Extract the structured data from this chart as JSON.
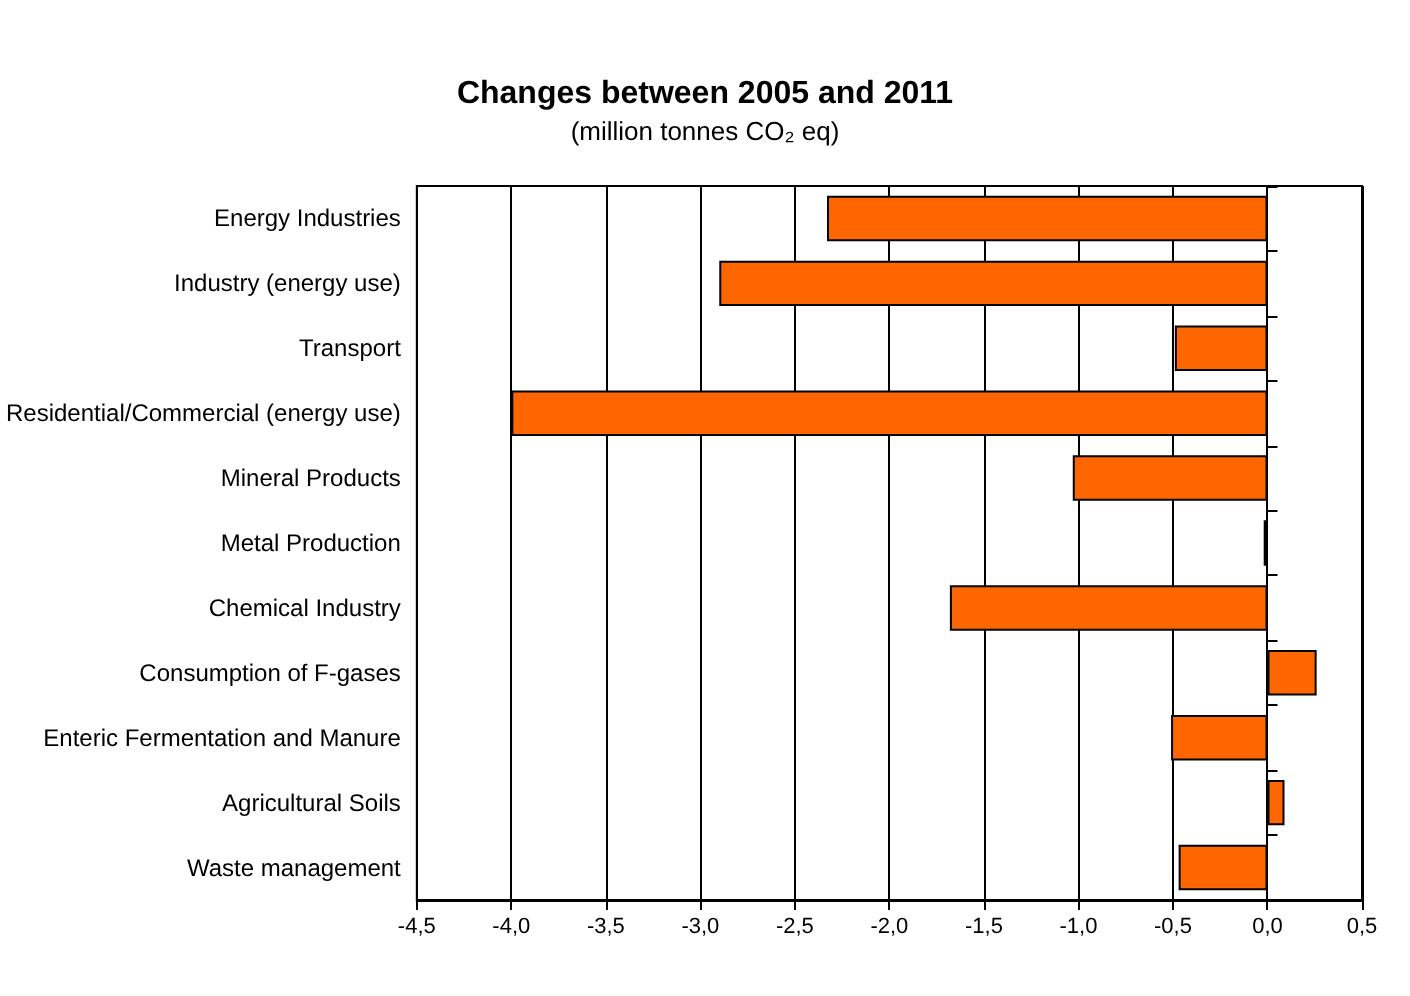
{
  "chart_data": {
    "type": "bar",
    "orientation": "horizontal",
    "title": "Changes between 2005 and 2011",
    "subtitle": "(million tonnes CO₂ eq)",
    "categories": [
      "Energy Industries",
      "Industry (energy use)",
      "Transport",
      "Residential/Commercial (energy use)",
      "Mineral Products",
      "Metal Production",
      "Chemical Industry",
      "Consumption of F-gases",
      "Enteric Fermentation and Manure",
      "Agricultural Soils",
      "Waste management"
    ],
    "values": [
      -2.33,
      -2.9,
      -0.49,
      -4.0,
      -1.03,
      -0.02,
      -1.68,
      0.26,
      -0.51,
      0.09,
      -0.47
    ],
    "color": "#ff6600",
    "xlim": [
      -4.5,
      0.5
    ],
    "xticks": [
      {
        "value": -4.5,
        "label": "-4,5"
      },
      {
        "value": -4,
        "label": "-4,0"
      },
      {
        "value": -3.5,
        "label": "-3,5"
      },
      {
        "value": -3,
        "label": "-3,0"
      },
      {
        "value": -2.5,
        "label": "-2,5"
      },
      {
        "value": -2,
        "label": "-2,0"
      },
      {
        "value": -1.5,
        "label": "-1,5"
      },
      {
        "value": -1,
        "label": "-1,0"
      },
      {
        "value": -0.5,
        "label": "-0,5"
      },
      {
        "value": 0,
        "label": "0,0"
      },
      {
        "value": 0.5,
        "label": "0,5"
      }
    ],
    "grid": "x"
  }
}
